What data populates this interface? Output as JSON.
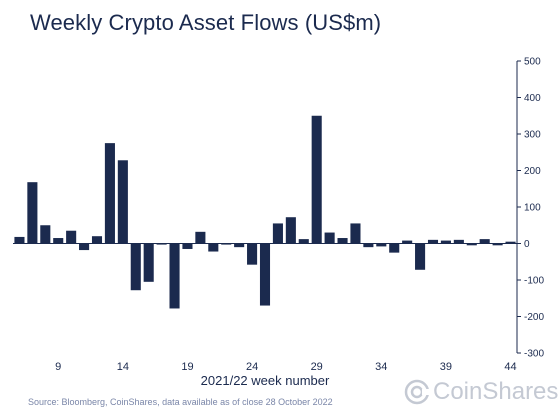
{
  "chart_data": {
    "type": "bar",
    "title": "Weekly Crypto Asset Flows (US$m)",
    "xlabel": "2021/22 week number",
    "ylabel": "",
    "ylim": [
      -300,
      500
    ],
    "yticks": [
      500,
      400,
      300,
      200,
      100,
      0,
      -100,
      -200,
      -300
    ],
    "xticks": [
      9,
      14,
      19,
      24,
      29,
      34,
      39,
      44
    ],
    "x": [
      6,
      7,
      8,
      9,
      10,
      11,
      12,
      13,
      14,
      15,
      16,
      17,
      18,
      19,
      20,
      21,
      22,
      23,
      24,
      25,
      26,
      27,
      28,
      29,
      30,
      31,
      32,
      33,
      34,
      35,
      36,
      37,
      38,
      39,
      40,
      41,
      42,
      43,
      44
    ],
    "values": [
      18,
      168,
      50,
      15,
      35,
      -18,
      20,
      275,
      228,
      -128,
      -105,
      -3,
      -178,
      -15,
      32,
      -22,
      -3,
      -10,
      -58,
      -170,
      55,
      72,
      12,
      350,
      30,
      15,
      55,
      -10,
      -8,
      -25,
      8,
      -72,
      10,
      8,
      10,
      -5,
      12,
      -5,
      5
    ],
    "color": "#1b2a4e",
    "axis_position": "right",
    "grid": false,
    "legend": "none"
  },
  "source": "Source: Bloomberg, CoinShares, data available as of close 28 October 2022",
  "logo_text": "CoinShares"
}
